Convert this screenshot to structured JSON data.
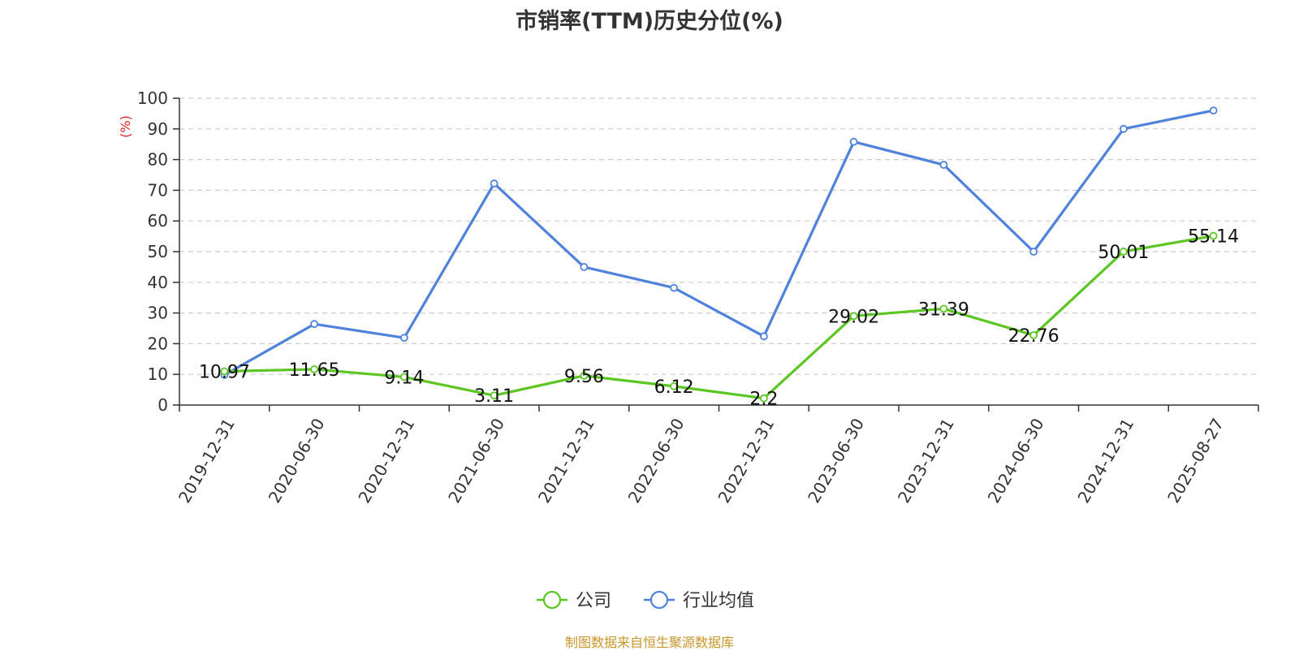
{
  "chart_data": {
    "type": "line",
    "title": "市销率(TTM)历史分位(%)",
    "ylabel": "(%)",
    "ylim": [
      0,
      100
    ],
    "yticks": [
      0,
      10,
      20,
      30,
      40,
      50,
      60,
      70,
      80,
      90,
      100
    ],
    "grid": true,
    "legend_position": "bottom-center",
    "categories": [
      "2019-12-31",
      "2020-06-30",
      "2020-12-31",
      "2021-06-30",
      "2021-12-31",
      "2022-06-30",
      "2022-12-31",
      "2023-06-30",
      "2023-12-31",
      "2024-06-30",
      "2024-12-31",
      "2025-08-27"
    ],
    "series": [
      {
        "name": "公司",
        "color": "#5cc623",
        "show_labels": true,
        "values": [
          10.97,
          11.65,
          9.14,
          3.11,
          9.56,
          6.12,
          2.2,
          29.02,
          31.39,
          22.76,
          50.01,
          55.14
        ]
      },
      {
        "name": "行业均值",
        "color": "#4f82dc",
        "show_labels": false,
        "values": [
          9.8,
          26.4,
          21.9,
          72.2,
          45.0,
          38.2,
          22.4,
          85.8,
          78.3,
          50.0,
          90.0,
          96.0
        ]
      }
    ]
  },
  "source_note": "制图数据来自恒生聚源数据库"
}
